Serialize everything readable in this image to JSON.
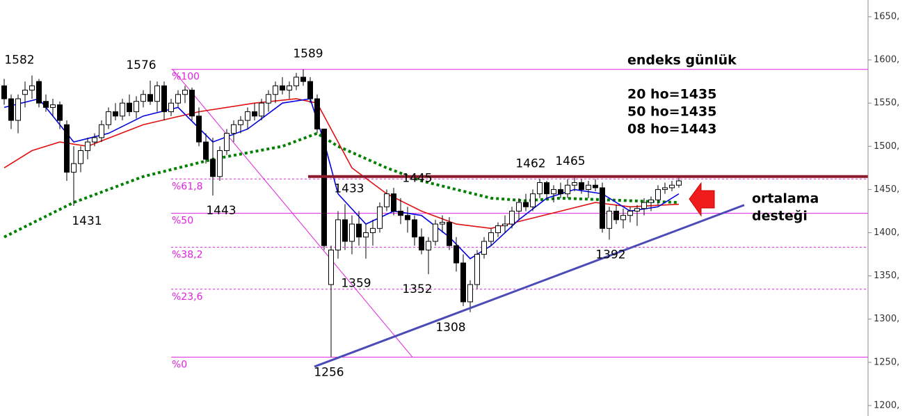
{
  "chart_data": {
    "type": "candlestick",
    "xlim": [
      -0.6,
      124.2
    ],
    "ylim": [
      1187.9,
      1669.3
    ],
    "yticks": [
      {
        "value": 1200,
        "label": "1200,"
      },
      {
        "value": 1250,
        "label": "1250,"
      },
      {
        "value": 1300,
        "label": "1300,"
      },
      {
        "value": 1350,
        "label": "1350,"
      },
      {
        "value": 1400,
        "label": "1400,"
      },
      {
        "value": 1450,
        "label": "1450,"
      },
      {
        "value": 1500,
        "label": "1500,"
      },
      {
        "value": 1550,
        "label": "1550,"
      },
      {
        "value": 1600,
        "label": "1600,"
      },
      {
        "value": 1650,
        "label": "1650,"
      }
    ],
    "open": [
      1570,
      1555,
      1530,
      1560,
      1565,
      1575,
      1552,
      1545,
      1548,
      1525,
      1470,
      1480,
      1495,
      1505,
      1510,
      1525,
      1540,
      1535,
      1550,
      1540,
      1552,
      1560,
      1552,
      1570,
      1540,
      1550,
      1560,
      1565,
      1535,
      1505,
      1485,
      1465,
      1495,
      1515,
      1525,
      1530,
      1540,
      1535,
      1550,
      1560,
      1570,
      1565,
      1570,
      1580,
      1575,
      1555,
      1520,
      1340,
      1380,
      1415,
      1390,
      1410,
      1395,
      1400,
      1405,
      1430,
      1445,
      1425,
      1420,
      1415,
      1395,
      1380,
      1390,
      1410,
      1412,
      1385,
      1365,
      1320,
      1340,
      1375,
      1390,
      1400,
      1408,
      1410,
      1425,
      1435,
      1430,
      1445,
      1458,
      1445,
      1450,
      1445,
      1455,
      1458,
      1450,
      1455,
      1452,
      1405,
      1425,
      1415,
      1420,
      1425,
      1428,
      1435,
      1438,
      1450,
      1452,
      1455
    ],
    "high": [
      1578,
      1560,
      1560,
      1575,
      1582,
      1578,
      1560,
      1555,
      1552,
      1530,
      1500,
      1500,
      1510,
      1515,
      1530,
      1545,
      1550,
      1555,
      1560,
      1558,
      1565,
      1576,
      1575,
      1575,
      1555,
      1565,
      1570,
      1568,
      1545,
      1515,
      1510,
      1500,
      1520,
      1530,
      1535,
      1545,
      1550,
      1555,
      1565,
      1575,
      1580,
      1575,
      1585,
      1589,
      1580,
      1560,
      1520,
      1385,
      1425,
      1433,
      1420,
      1425,
      1410,
      1415,
      1435,
      1450,
      1452,
      1440,
      1430,
      1420,
      1405,
      1395,
      1415,
      1420,
      1418,
      1395,
      1375,
      1345,
      1380,
      1395,
      1405,
      1412,
      1420,
      1430,
      1440,
      1445,
      1450,
      1462,
      1460,
      1455,
      1458,
      1462,
      1465,
      1462,
      1460,
      1462,
      1458,
      1430,
      1432,
      1428,
      1430,
      1432,
      1440,
      1442,
      1455,
      1458,
      1460,
      1465
    ],
    "low": [
      1548,
      1520,
      1515,
      1545,
      1555,
      1545,
      1540,
      1535,
      1520,
      1460,
      1431,
      1470,
      1485,
      1500,
      1505,
      1520,
      1530,
      1530,
      1535,
      1532,
      1545,
      1548,
      1540,
      1530,
      1535,
      1545,
      1550,
      1530,
      1500,
      1480,
      1443,
      1460,
      1490,
      1505,
      1515,
      1520,
      1530,
      1530,
      1540,
      1550,
      1560,
      1555,
      1565,
      1570,
      1550,
      1515,
      1380,
      1256,
      1370,
      1380,
      1375,
      1385,
      1370,
      1385,
      1400,
      1425,
      1420,
      1410,
      1400,
      1385,
      1375,
      1352,
      1385,
      1400,
      1380,
      1355,
      1315,
      1308,
      1335,
      1370,
      1385,
      1395,
      1400,
      1405,
      1415,
      1425,
      1425,
      1440,
      1440,
      1435,
      1440,
      1440,
      1448,
      1445,
      1440,
      1448,
      1400,
      1392,
      1410,
      1405,
      1412,
      1408,
      1420,
      1425,
      1432,
      1445,
      1448,
      1452
    ],
    "close": [
      1555,
      1530,
      1555,
      1565,
      1570,
      1550,
      1545,
      1548,
      1530,
      1470,
      1480,
      1495,
      1505,
      1510,
      1525,
      1540,
      1535,
      1550,
      1540,
      1552,
      1560,
      1552,
      1570,
      1540,
      1550,
      1560,
      1565,
      1535,
      1505,
      1485,
      1465,
      1495,
      1515,
      1525,
      1530,
      1540,
      1535,
      1550,
      1560,
      1570,
      1565,
      1570,
      1580,
      1575,
      1555,
      1520,
      1385,
      1380,
      1415,
      1390,
      1410,
      1395,
      1400,
      1405,
      1430,
      1445,
      1425,
      1420,
      1415,
      1395,
      1380,
      1390,
      1410,
      1412,
      1385,
      1365,
      1320,
      1340,
      1375,
      1390,
      1400,
      1408,
      1410,
      1425,
      1435,
      1430,
      1445,
      1458,
      1445,
      1450,
      1445,
      1455,
      1458,
      1450,
      1455,
      1452,
      1405,
      1425,
      1415,
      1420,
      1425,
      1428,
      1435,
      1438,
      1450,
      1452,
      1455,
      1460
    ],
    "up_color": "#ffffff",
    "down_color": "#000000",
    "moving_averages": [
      {
        "color": "#008000",
        "dash": true,
        "x": [
          0,
          10,
          20,
          30,
          40,
          45,
          48,
          55,
          60,
          70,
          75,
          80,
          90,
          97
        ],
        "values": [
          1395,
          1435,
          1465,
          1485,
          1500,
          1515,
          1500,
          1475,
          1460,
          1440,
          1437,
          1440,
          1437,
          1435
        ]
      },
      {
        "color": "#e01010",
        "dash": false,
        "x": [
          0,
          4,
          8,
          12,
          20,
          28,
          36,
          42,
          45,
          50,
          55,
          60,
          65,
          70,
          75,
          80,
          85,
          90,
          97
        ],
        "values": [
          1475,
          1495,
          1505,
          1500,
          1525,
          1540,
          1550,
          1555,
          1550,
          1475,
          1445,
          1425,
          1410,
          1405,
          1415,
          1425,
          1435,
          1430,
          1433
        ]
      },
      {
        "color": "#0000e0",
        "dash": false,
        "x": [
          0,
          5,
          10,
          15,
          20,
          25,
          30,
          35,
          40,
          44,
          46,
          48,
          52,
          56,
          60,
          64,
          67,
          70,
          74,
          78,
          82,
          86,
          90,
          94,
          97
        ],
        "values": [
          1545,
          1555,
          1505,
          1515,
          1535,
          1545,
          1505,
          1520,
          1550,
          1555,
          1505,
          1445,
          1410,
          1425,
          1420,
          1395,
          1370,
          1385,
          1415,
          1440,
          1450,
          1445,
          1425,
          1430,
          1445
        ]
      }
    ],
    "fibonacci": {
      "color": "#e020e0",
      "x_start": 24,
      "diagonal_x": [
        24.2,
        58.7
      ],
      "diagonal_values": [
        1589,
        1256
      ],
      "levels": [
        {
          "value": 1589,
          "label": "%100",
          "style": "solid"
        },
        {
          "value": 1462.2,
          "label": "%61,8",
          "style": "dashed"
        },
        {
          "value": 1422.5,
          "label": "%50",
          "style": "solid"
        },
        {
          "value": 1383.2,
          "label": "%38,2",
          "style": "dashed"
        },
        {
          "value": 1334.6,
          "label": "%23,6",
          "style": "dashed"
        },
        {
          "value": 1256,
          "label": "%0",
          "style": "solid"
        }
      ]
    },
    "resistance": {
      "value": 1465,
      "x_start": 43.7,
      "color": "#8b1a2a"
    },
    "trendline": {
      "x": [
        44.6,
        106.4
      ],
      "values": [
        1245,
        1432
      ],
      "color": "#4a4ab8"
    },
    "price_labels": [
      {
        "value": 1582,
        "x": 2.2,
        "position": "above"
      },
      {
        "value": 1576,
        "x": 19.7,
        "position": "above"
      },
      {
        "value": 1589,
        "x": 43.7,
        "position": "above"
      },
      {
        "value": 1431,
        "x": 11.9,
        "position": "below"
      },
      {
        "value": 1443,
        "x": 31.2,
        "position": "below"
      },
      {
        "value": 1433,
        "x": 49.6,
        "position": "above"
      },
      {
        "value": 1445,
        "x": 59.4,
        "position": "above"
      },
      {
        "value": 1359,
        "x": 50.6,
        "position": "below"
      },
      {
        "value": 1352,
        "x": 59.4,
        "position": "below"
      },
      {
        "value": 1308,
        "x": 64.2,
        "position": "below"
      },
      {
        "value": 1256,
        "x": 46.7,
        "position": "below"
      },
      {
        "value": 1462,
        "x": 75.7,
        "position": "above"
      },
      {
        "value": 1465,
        "x": 81.4,
        "position": "above"
      },
      {
        "value": 1392,
        "x": 87.2,
        "position": "below"
      }
    ],
    "text_box": [
      "endeks günlük",
      "20 ho=1435",
      "50 ho=1435",
      "08 ho=1443"
    ],
    "support_note": [
      "ortalama",
      "desteği"
    ]
  }
}
